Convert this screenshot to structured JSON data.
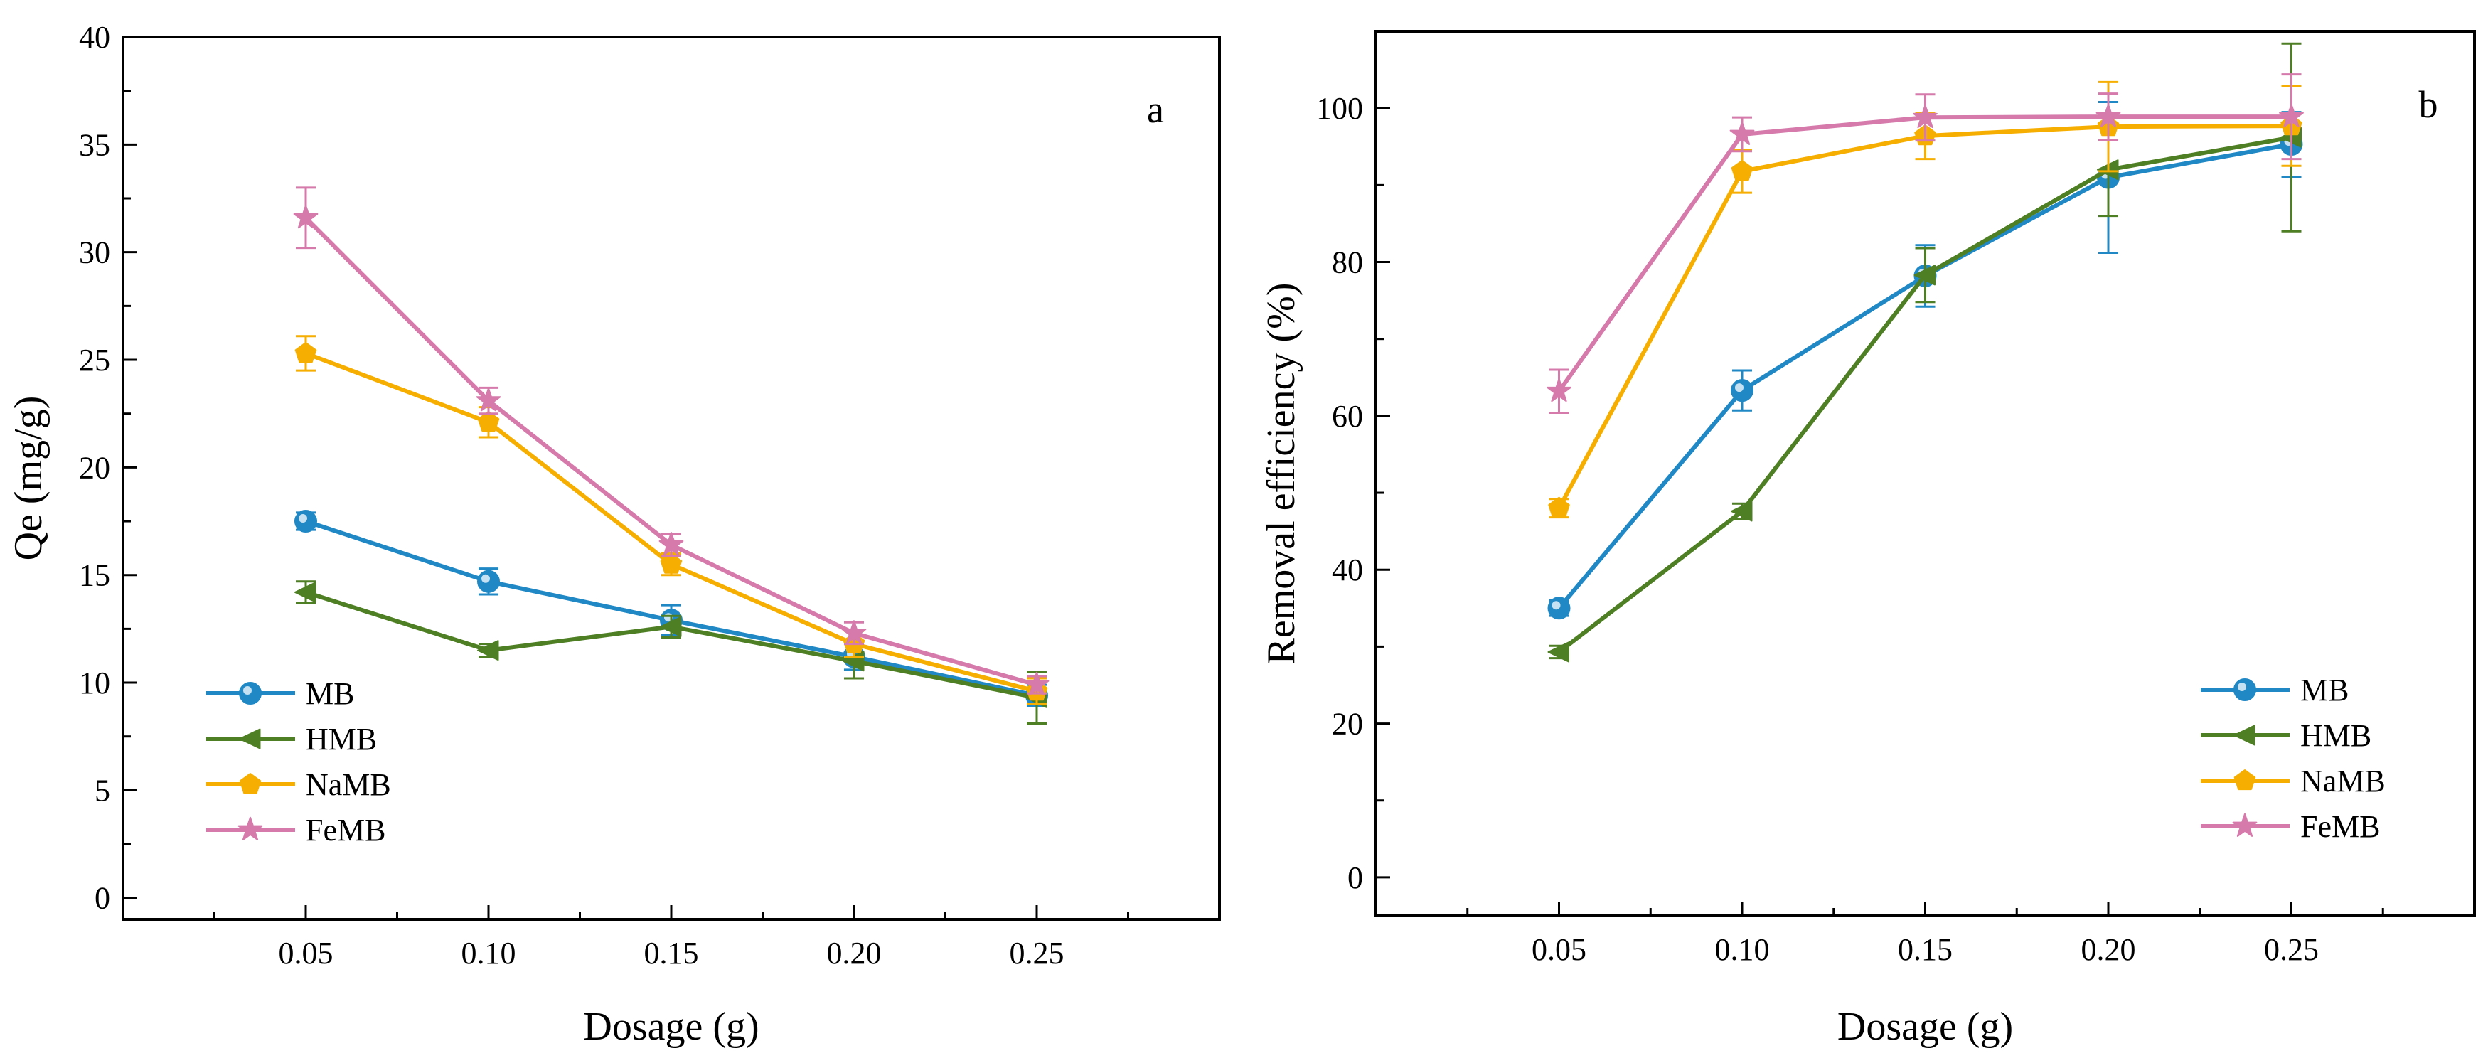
{
  "figure": {
    "series_colors": {
      "MB": "#1f88c5",
      "HMB": "#4f7f24",
      "NaMB": "#f6ae00",
      "FeMB": "#d57aab"
    },
    "series_markers": {
      "MB": "circle",
      "HMB": "left-triangle",
      "NaMB": "pentagon",
      "FeMB": "star"
    }
  },
  "chart_data": [
    {
      "id": "a",
      "type": "line",
      "panel_label": "a",
      "title": "",
      "xlabel": "Dosage (g)",
      "ylabel": "Qe (mg/g)",
      "x": [
        0.05,
        0.1,
        0.15,
        0.2,
        0.25
      ],
      "xticklabels": [
        "0.05",
        "0.10",
        "0.15",
        "0.20",
        "0.25"
      ],
      "xlim": [
        0.0,
        0.3
      ],
      "ylim": [
        -1,
        40
      ],
      "yticks": [
        0,
        5,
        10,
        15,
        20,
        25,
        30,
        35,
        40
      ],
      "legend_position": "bottom-left",
      "series": [
        {
          "name": "MB",
          "values": [
            17.5,
            14.7,
            12.9,
            11.2,
            9.4
          ],
          "errors": [
            0.4,
            0.6,
            0.7,
            0.6,
            0.5
          ]
        },
        {
          "name": "HMB",
          "values": [
            14.2,
            11.5,
            12.6,
            11.0,
            9.3
          ],
          "errors": [
            0.5,
            0.3,
            0.5,
            0.8,
            1.2
          ]
        },
        {
          "name": "NaMB",
          "values": [
            25.3,
            22.1,
            15.5,
            11.8,
            9.6
          ],
          "errors": [
            0.8,
            0.7,
            0.5,
            0.6,
            0.6
          ]
        },
        {
          "name": "FeMB",
          "values": [
            31.6,
            23.1,
            16.4,
            12.3,
            9.9
          ],
          "errors": [
            1.4,
            0.6,
            0.5,
            0.5,
            0.4
          ]
        }
      ]
    },
    {
      "id": "b",
      "type": "line",
      "panel_label": "b",
      "title": "",
      "xlabel": "Dosage (g)",
      "ylabel": "Removal efficiency (%)",
      "x": [
        0.05,
        0.1,
        0.15,
        0.2,
        0.25
      ],
      "xticklabels": [
        "0.05",
        "0.10",
        "0.15",
        "0.20",
        "0.25"
      ],
      "xlim": [
        0.0,
        0.3
      ],
      "ylim": [
        -5,
        110
      ],
      "yticks": [
        0,
        20,
        40,
        60,
        80,
        100
      ],
      "legend_position": "bottom-right",
      "series": [
        {
          "name": "MB",
          "values": [
            35.0,
            63.3,
            78.2,
            91.0,
            95.3
          ],
          "errors": [
            1.0,
            2.6,
            4.0,
            9.8,
            4.2
          ]
        },
        {
          "name": "HMB",
          "values": [
            29.3,
            47.6,
            78.3,
            92.0,
            96.2
          ],
          "errors": [
            0.8,
            1.0,
            3.5,
            6.0,
            12.2
          ]
        },
        {
          "name": "NaMB",
          "values": [
            48.0,
            91.8,
            96.4,
            97.6,
            97.7
          ],
          "errors": [
            1.2,
            2.8,
            3.0,
            5.8,
            5.2
          ]
        },
        {
          "name": "FeMB",
          "values": [
            63.2,
            96.6,
            98.8,
            98.9,
            98.9
          ],
          "errors": [
            2.8,
            2.2,
            3.0,
            3.0,
            5.5
          ]
        }
      ]
    }
  ]
}
